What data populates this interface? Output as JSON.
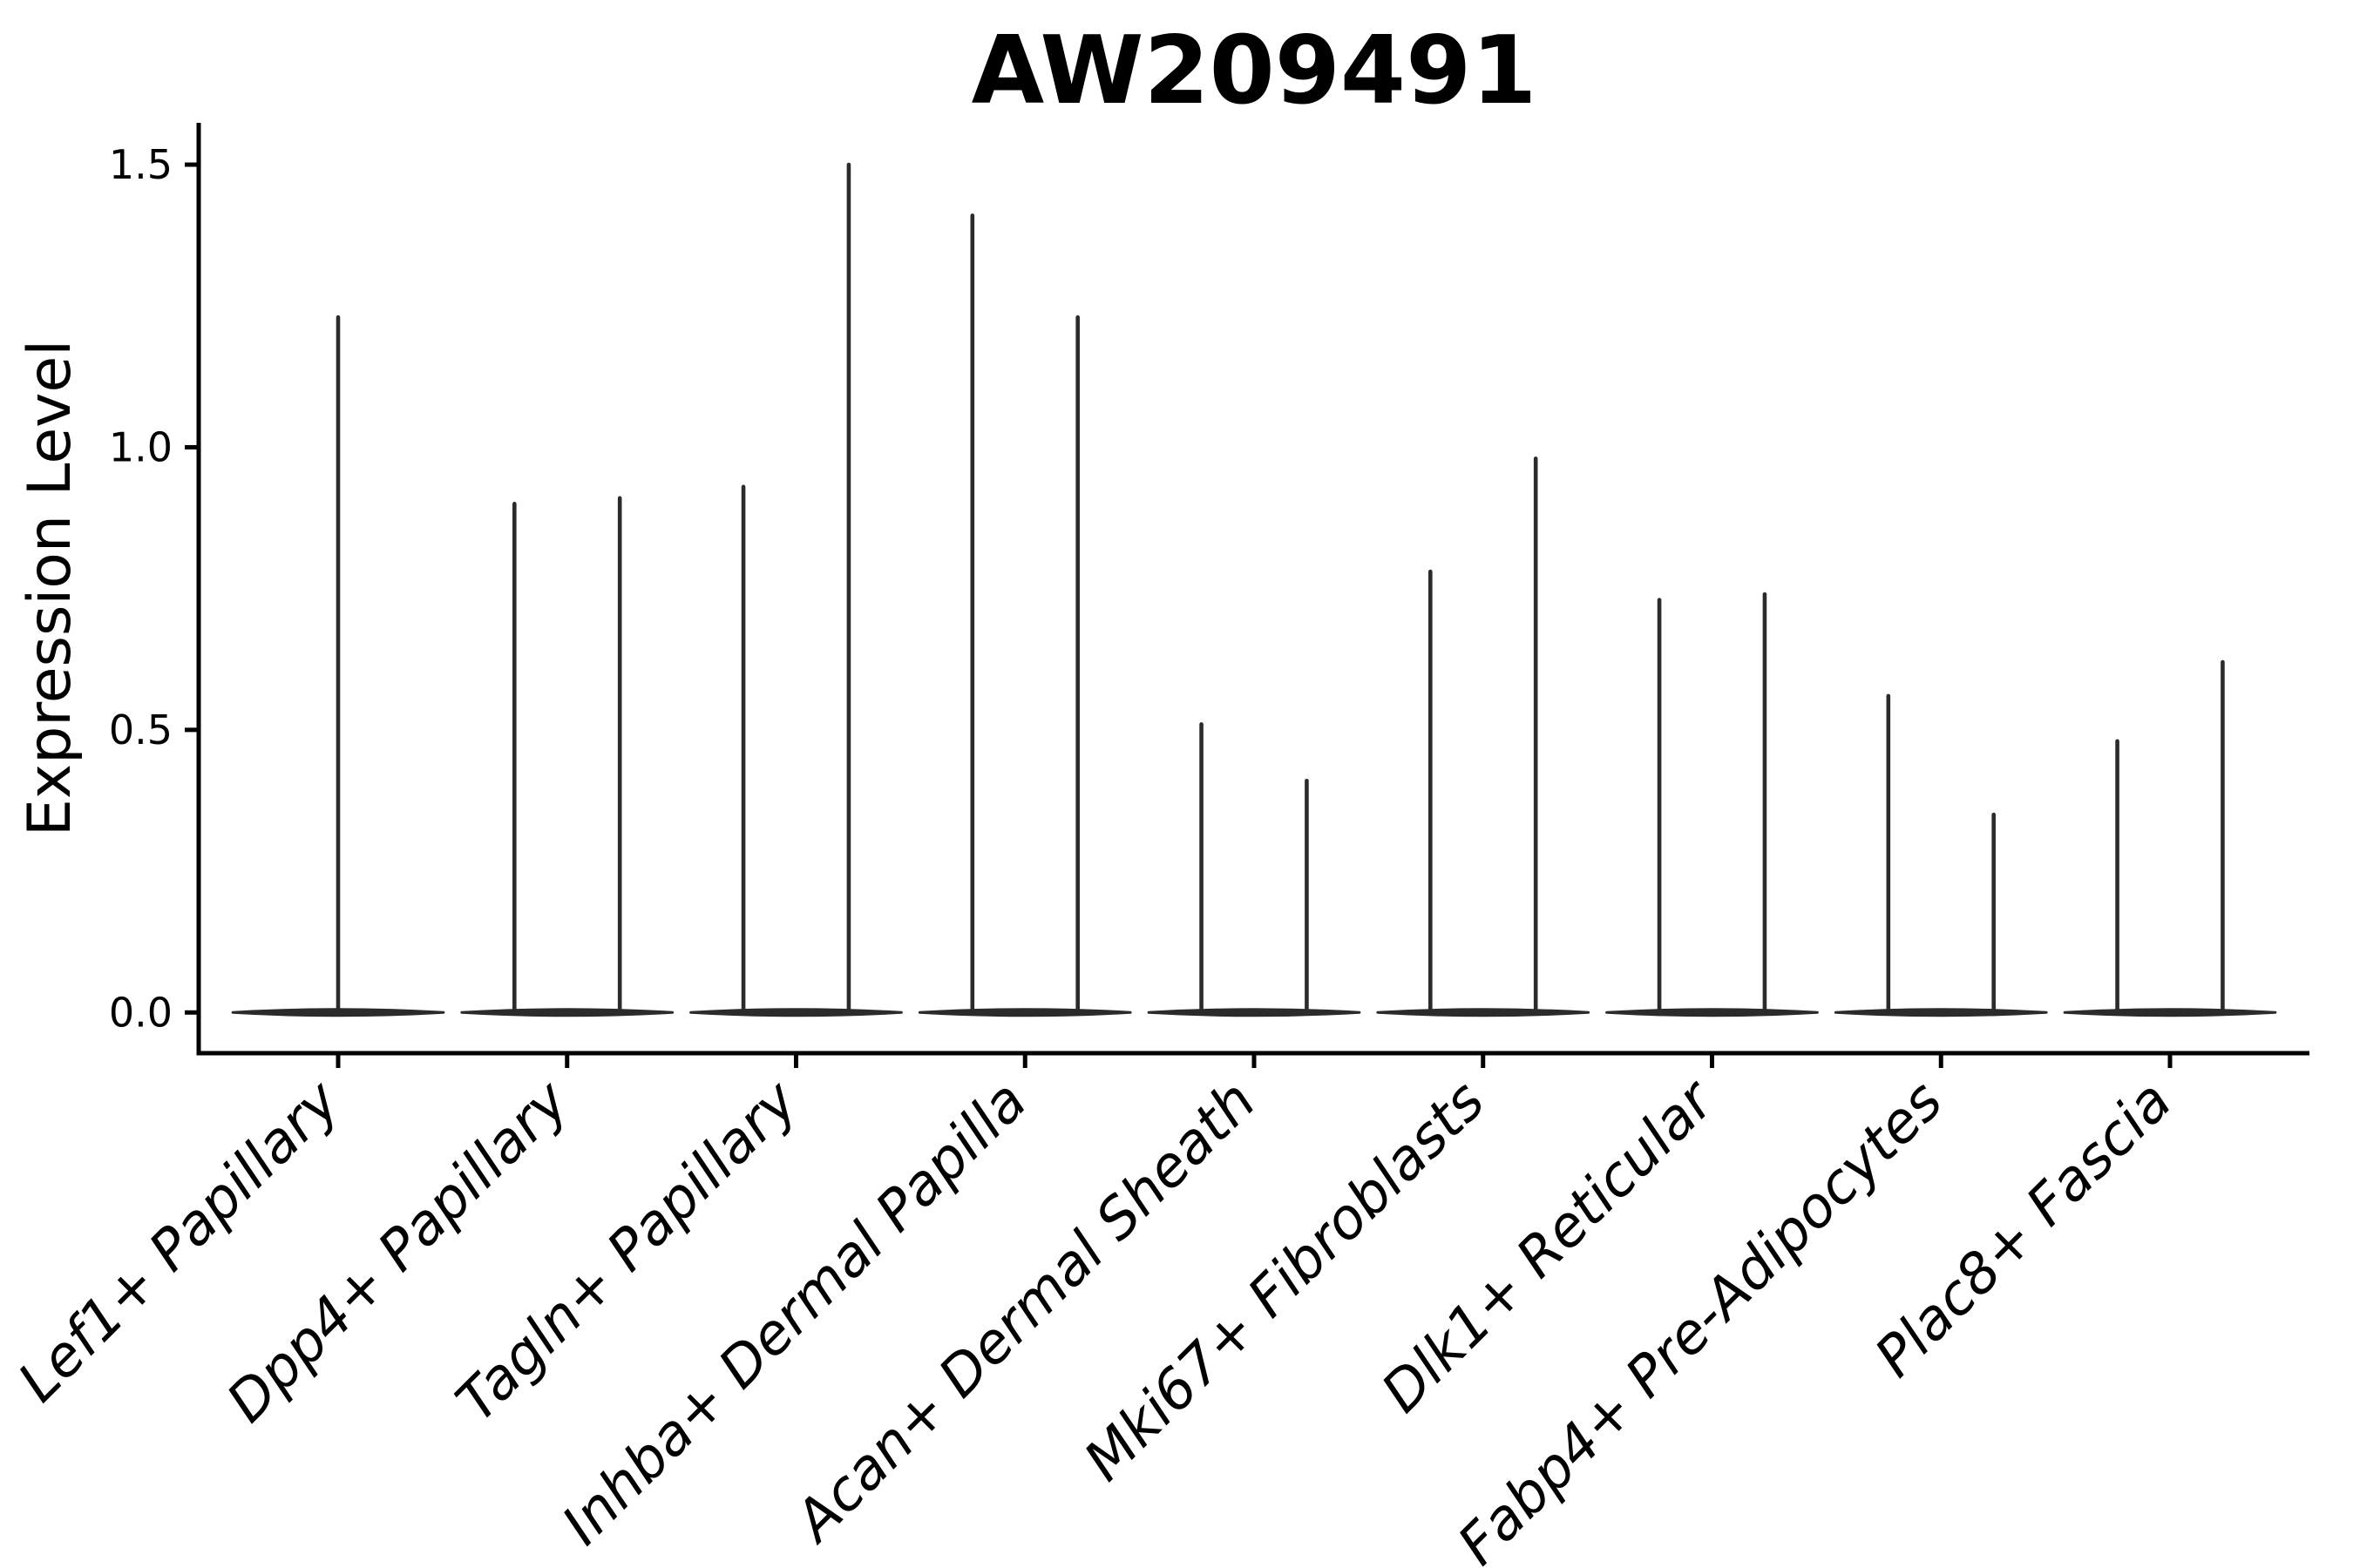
{
  "figure": {
    "title": "AW209491",
    "ylabel": "Expression Level",
    "xlabel": ""
  },
  "chart_data": {
    "type": "violin",
    "title": "AW209491",
    "subtitle": "",
    "xlabel": "",
    "ylabel": "Expression Level",
    "ylim": [
      -0.072,
      1.574
    ],
    "ytick_labels": [
      "0.0",
      "0.5",
      "1.0",
      "1.5"
    ],
    "grid": false,
    "legend_position": "none",
    "base_half_width": 0.46,
    "categories": [
      "Lef1+ Papillary",
      "Dpp4+ Papillary",
      "Tagln+ Papillary",
      "Inhba+ Dermal Papilla",
      "Acan+ Dermal Sheath",
      "Mki67+ Fibroblasts",
      "Dlk1+ Reticular",
      "Fabp4+ Pre-Adipocytes",
      "Plac8+ Fascia"
    ],
    "violins": [
      {
        "category": "Lef1+ Papillary",
        "spikes": [
          {
            "offset": 0.0,
            "max": 1.23
          }
        ]
      },
      {
        "category": "Dpp4+ Papillary",
        "spikes": [
          {
            "offset": -0.23,
            "max": 0.9
          },
          {
            "offset": 0.23,
            "max": 0.91
          }
        ]
      },
      {
        "category": "Tagln+ Papillary",
        "spikes": [
          {
            "offset": -0.23,
            "max": 0.93
          },
          {
            "offset": 0.23,
            "max": 1.5
          }
        ]
      },
      {
        "category": "Inhba+ Dermal Papilla",
        "spikes": [
          {
            "offset": -0.23,
            "max": 1.41
          },
          {
            "offset": 0.23,
            "max": 1.23
          }
        ]
      },
      {
        "category": "Acan+ Dermal Sheath",
        "spikes": [
          {
            "offset": -0.23,
            "max": 0.51
          },
          {
            "offset": 0.23,
            "max": 0.41
          }
        ]
      },
      {
        "category": "Mki67+ Fibroblasts",
        "spikes": [
          {
            "offset": -0.23,
            "max": 0.78
          },
          {
            "offset": 0.23,
            "max": 0.98
          }
        ]
      },
      {
        "category": "Dlk1+ Reticular",
        "spikes": [
          {
            "offset": -0.23,
            "max": 0.73
          },
          {
            "offset": 0.23,
            "max": 0.74
          }
        ]
      },
      {
        "category": "Fabp4+ Pre-Adipocytes",
        "spikes": [
          {
            "offset": -0.23,
            "max": 0.56
          },
          {
            "offset": 0.23,
            "max": 0.35
          }
        ]
      },
      {
        "category": "Plac8+ Fascia",
        "spikes": [
          {
            "offset": -0.23,
            "max": 0.48
          },
          {
            "offset": 0.23,
            "max": 0.62
          }
        ]
      }
    ],
    "colors": {
      "violin": "#2b2b2b",
      "axis": "#000000",
      "text": "#000000",
      "background": "#ffffff"
    }
  }
}
